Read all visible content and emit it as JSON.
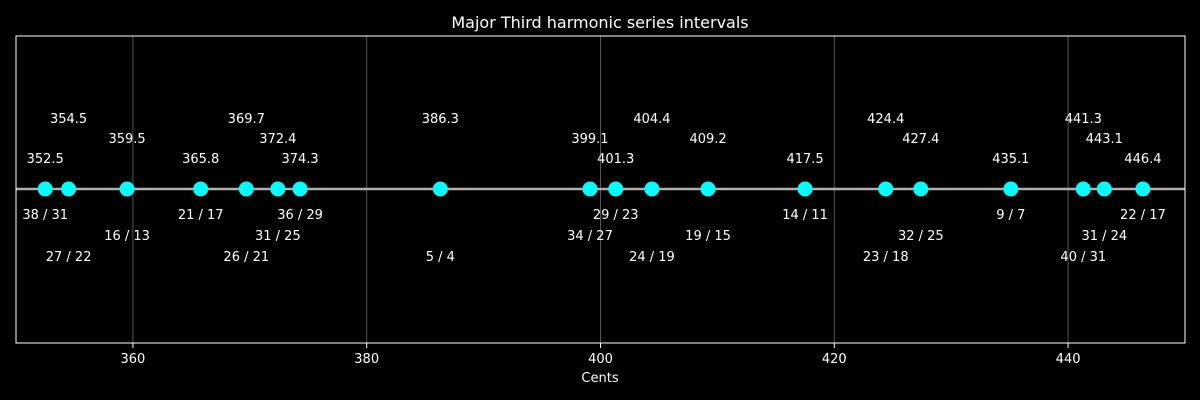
{
  "chart_data": {
    "type": "scatter",
    "title": "Major Third harmonic series intervals",
    "xlabel": "Cents",
    "xlim": [
      350,
      450
    ],
    "xticks": [
      360,
      380,
      400,
      420,
      440
    ],
    "grid": "vertical",
    "colors": {
      "background": "#000000",
      "point": "#00ffff",
      "line": "#b0b0b0",
      "grid": "#555555",
      "text": "#ffffff"
    },
    "points": [
      {
        "cents": 352.5,
        "ratio": "38 / 31"
      },
      {
        "cents": 354.5,
        "ratio": "27 / 22"
      },
      {
        "cents": 359.5,
        "ratio": "16 / 13"
      },
      {
        "cents": 365.8,
        "ratio": "21 / 17"
      },
      {
        "cents": 369.7,
        "ratio": "26 / 21"
      },
      {
        "cents": 372.4,
        "ratio": "31 / 25"
      },
      {
        "cents": 374.3,
        "ratio": "36 / 29"
      },
      {
        "cents": 386.3,
        "ratio": "5 / 4"
      },
      {
        "cents": 399.1,
        "ratio": "34 / 27"
      },
      {
        "cents": 401.3,
        "ratio": "29 / 23"
      },
      {
        "cents": 404.4,
        "ratio": "24 / 19"
      },
      {
        "cents": 409.2,
        "ratio": "19 / 15"
      },
      {
        "cents": 417.5,
        "ratio": "14 / 11"
      },
      {
        "cents": 424.4,
        "ratio": "23 / 18"
      },
      {
        "cents": 427.4,
        "ratio": "32 / 25"
      },
      {
        "cents": 435.1,
        "ratio": "9 / 7"
      },
      {
        "cents": 441.3,
        "ratio": "40 / 31"
      },
      {
        "cents": 443.1,
        "ratio": "31 / 24"
      },
      {
        "cents": 446.4,
        "ratio": "22 / 17"
      }
    ]
  }
}
